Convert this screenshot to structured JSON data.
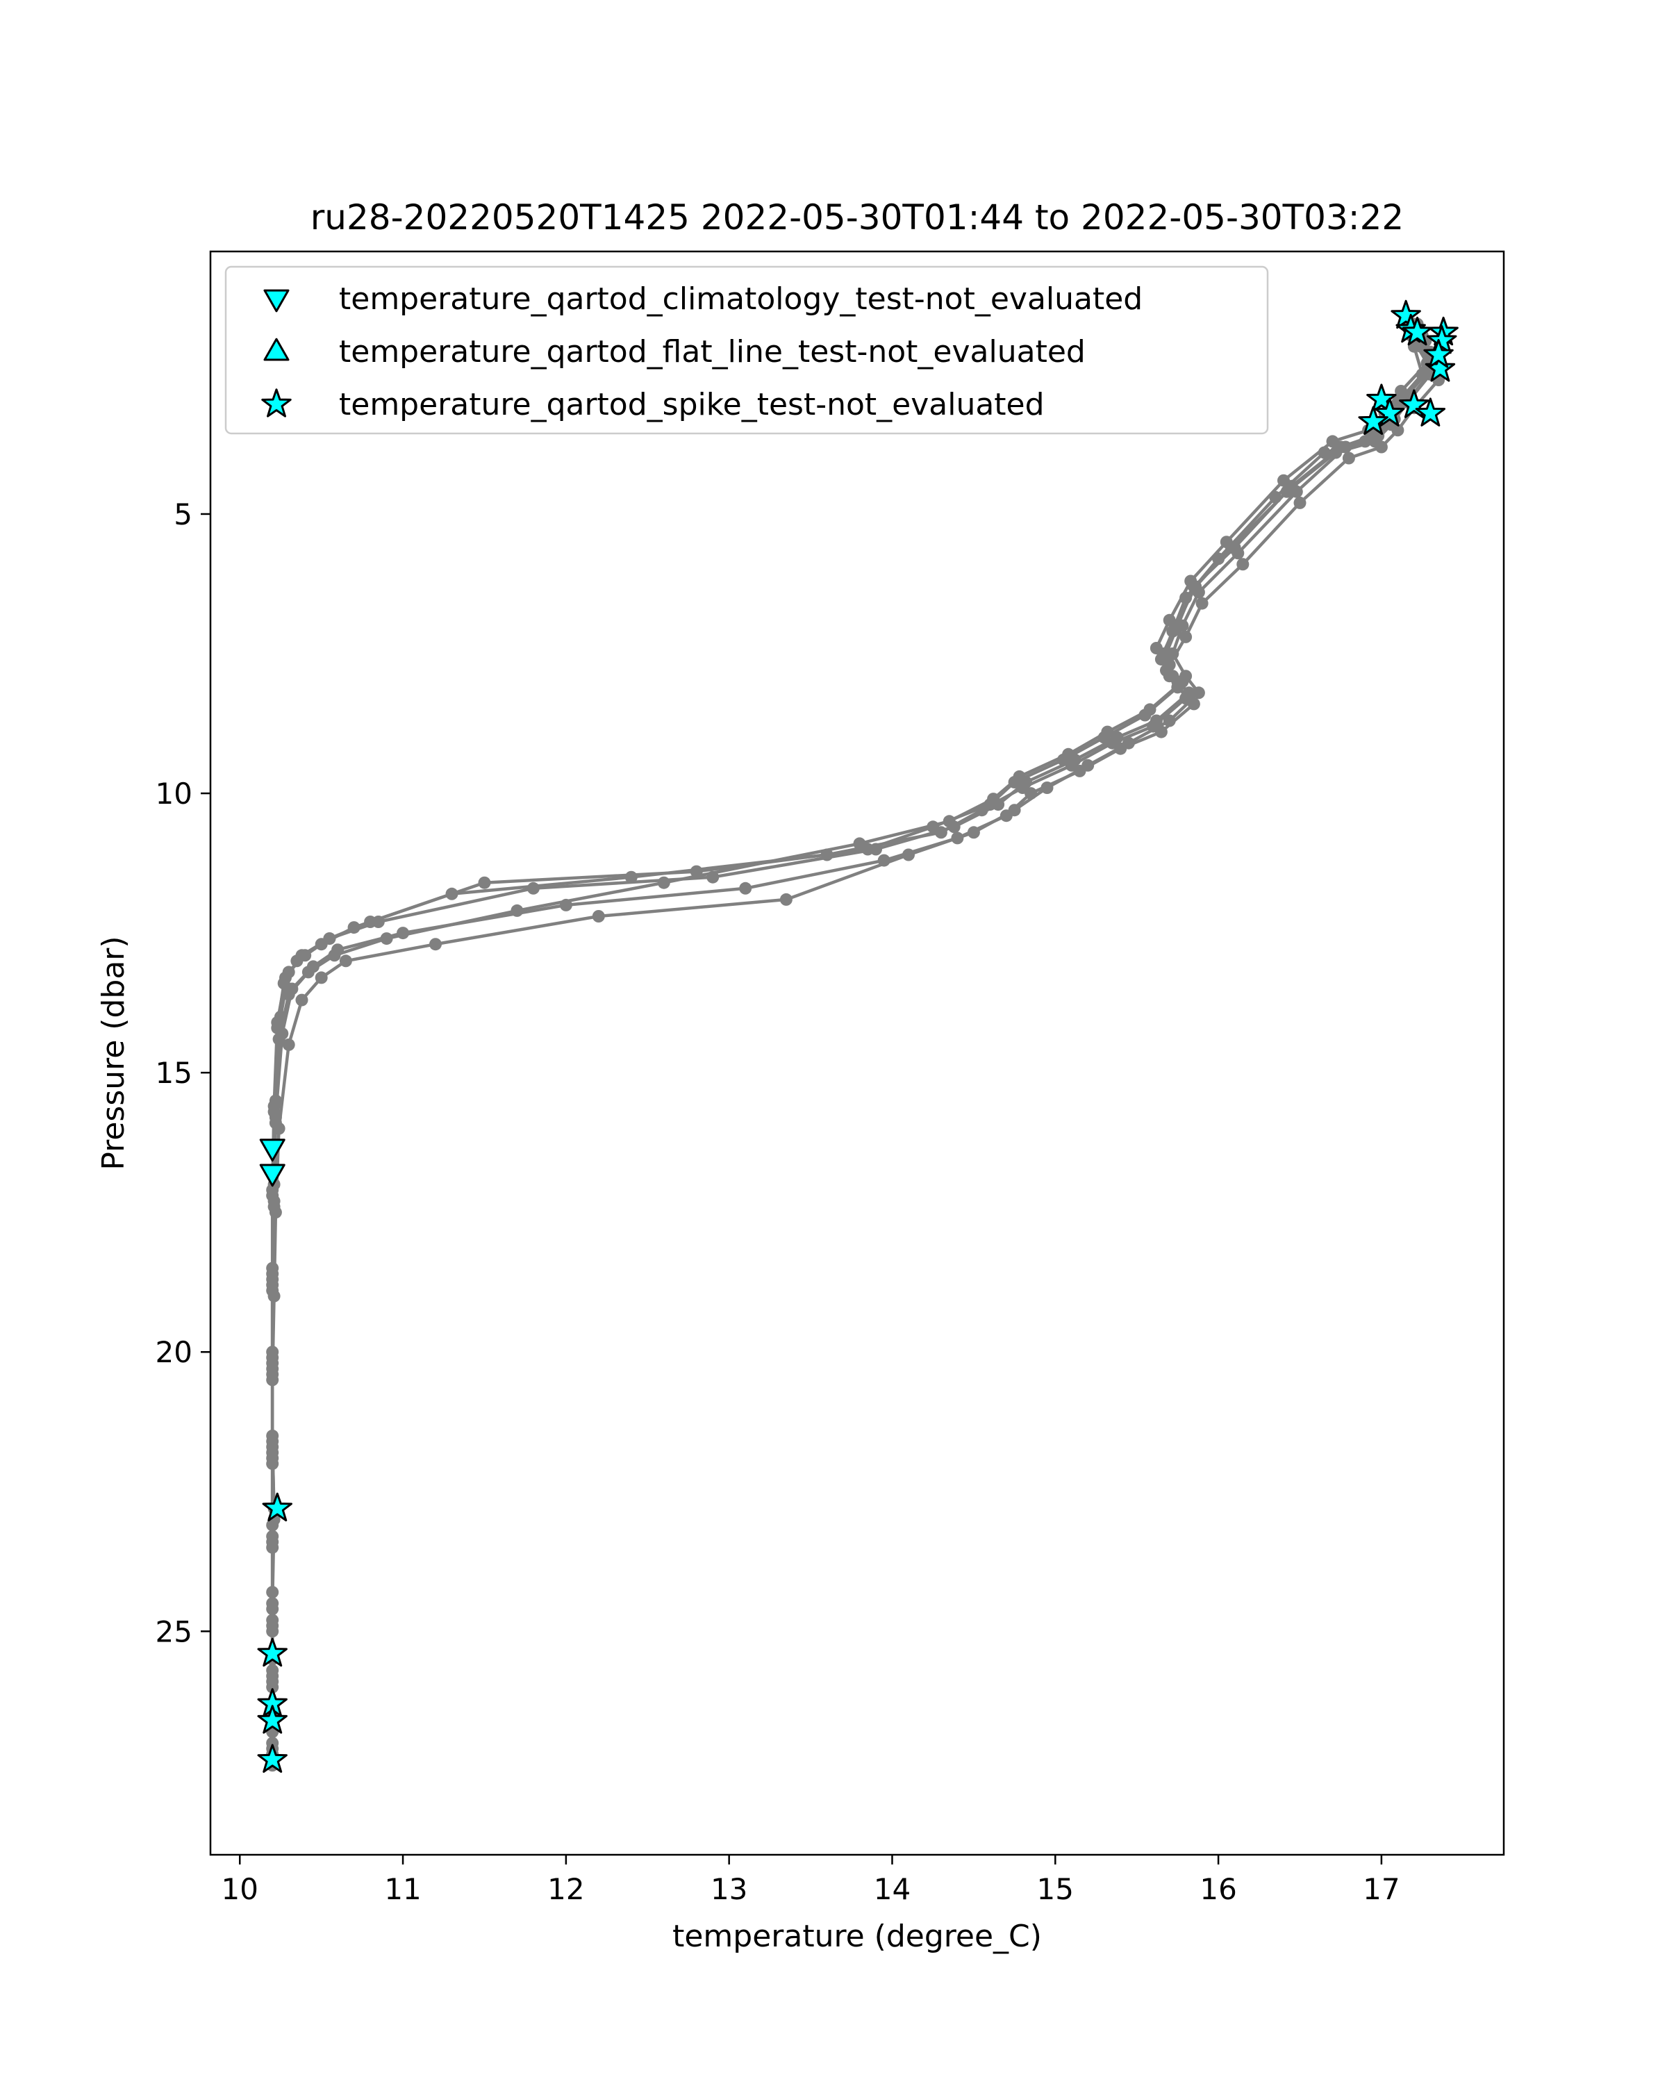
{
  "chart_data": {
    "type": "line",
    "title": "ru28-20220520T1425 2022-05-30T01:44 to 2022-05-30T03:22",
    "xlabel": "temperature (degree_C)",
    "ylabel": "Pressure (dbar)",
    "xlim": [
      9.82,
      17.75
    ],
    "ylim": [
      29.0,
      0.3
    ],
    "y_inverted": true,
    "x_ticks": [
      "10",
      "11",
      "12",
      "13",
      "14",
      "15",
      "16",
      "17"
    ],
    "y_ticks": [
      "5",
      "10",
      "15",
      "20",
      "25"
    ],
    "x_tick_values": [
      10,
      11,
      12,
      13,
      14,
      15,
      16,
      17
    ],
    "y_tick_values": [
      5,
      10,
      15,
      20,
      25
    ],
    "grid": false,
    "legend_position": "top-left",
    "line_color": "#808080",
    "marker_color": "#00ffff",
    "series": [
      {
        "name": "",
        "x": [
          17.2,
          17.23,
          17.3,
          17.15,
          17.05,
          16.95,
          16.75,
          16.45,
          16.1,
          15.85,
          15.75,
          15.68,
          15.7,
          15.75,
          15.55,
          15.3,
          15.05,
          14.75,
          14.6,
          14.25,
          13.85,
          12.8,
          11.5,
          10.8,
          10.55,
          10.4,
          10.3,
          10.25,
          10.22,
          10.21,
          10.2,
          10.2,
          10.2,
          10.21,
          10.2,
          10.2,
          10.2,
          10.2
        ],
        "y": [
          1.6,
          1.9,
          2.4,
          2.9,
          3.3,
          3.6,
          3.8,
          4.5,
          5.6,
          6.3,
          7.0,
          7.5,
          7.9,
          8.1,
          8.6,
          9.0,
          9.4,
          9.8,
          10.2,
          10.6,
          11.0,
          11.4,
          11.6,
          12.3,
          12.6,
          12.9,
          13.2,
          14.0,
          15.5,
          17.0,
          18.5,
          20.0,
          21.5,
          23.0,
          24.5,
          25.8,
          26.6,
          27.3
        ]
      },
      {
        "name": "",
        "x": [
          17.17,
          17.2,
          17.25,
          17.1,
          17.0,
          16.9,
          16.65,
          16.35,
          16.0,
          15.8,
          15.72,
          15.65,
          15.75,
          15.8,
          15.6,
          15.35,
          15.1,
          14.8,
          14.55,
          14.3,
          13.6,
          12.4,
          11.3,
          10.7,
          10.5,
          10.35,
          10.27,
          10.23,
          10.21,
          10.2,
          10.2,
          10.2,
          10.2,
          10.21,
          10.2,
          10.2,
          10.2,
          10.2
        ],
        "y": [
          1.7,
          2.0,
          2.5,
          3.0,
          3.4,
          3.7,
          3.9,
          4.7,
          5.8,
          6.5,
          7.1,
          7.6,
          8.0,
          8.3,
          8.8,
          9.1,
          9.5,
          9.9,
          10.3,
          10.7,
          11.1,
          11.5,
          11.8,
          12.4,
          12.7,
          13.0,
          13.4,
          14.2,
          15.7,
          17.2,
          18.7,
          20.2,
          21.7,
          22.8,
          24.3,
          25.5,
          26.3,
          27.0
        ]
      },
      {
        "name": "",
        "x": [
          17.25,
          17.3,
          17.35,
          17.2,
          17.1,
          17.0,
          16.8,
          16.5,
          16.15,
          15.9,
          15.8,
          15.7,
          15.75,
          15.85,
          15.65,
          15.4,
          15.15,
          14.85,
          14.7,
          14.4,
          13.95,
          13.1,
          12.0,
          11.0,
          10.6,
          10.45,
          10.32,
          10.26,
          10.22,
          10.21,
          10.2,
          10.2,
          10.2,
          10.2,
          10.2,
          10.2,
          10.2,
          10.2
        ],
        "y": [
          1.8,
          2.1,
          2.6,
          3.1,
          3.5,
          3.8,
          4.0,
          4.8,
          5.9,
          6.6,
          7.2,
          7.7,
          8.1,
          8.4,
          8.9,
          9.2,
          9.6,
          10.0,
          10.4,
          10.8,
          11.2,
          11.7,
          12.0,
          12.5,
          12.8,
          13.1,
          13.5,
          14.3,
          15.8,
          17.3,
          18.8,
          20.3,
          21.8,
          23.3,
          24.8,
          25.4,
          26.5,
          27.2
        ]
      },
      {
        "name": "",
        "x": [
          17.15,
          17.18,
          17.28,
          17.12,
          17.02,
          16.92,
          16.7,
          16.4,
          16.05,
          15.83,
          15.7,
          15.62,
          15.68,
          15.78,
          15.58,
          15.32,
          15.08,
          14.78,
          14.62,
          14.35,
          13.8,
          12.6,
          11.7,
          10.9,
          10.58,
          10.42,
          10.3,
          10.24,
          10.22,
          10.21,
          10.2,
          10.2,
          10.2,
          10.2,
          10.2,
          10.2,
          10.2,
          10.2
        ],
        "y": [
          1.5,
          1.8,
          2.3,
          2.8,
          3.2,
          3.5,
          3.7,
          4.4,
          5.5,
          6.2,
          6.9,
          7.4,
          7.8,
          8.0,
          8.5,
          8.9,
          9.3,
          9.7,
          10.1,
          10.5,
          10.9,
          11.6,
          12.1,
          12.6,
          12.9,
          13.2,
          13.6,
          14.4,
          15.9,
          17.4,
          18.9,
          20.4,
          21.9,
          23.4,
          24.9,
          25.9,
          26.7,
          27.4
        ]
      },
      {
        "name": "",
        "x": [
          17.22,
          17.27,
          17.32,
          17.18,
          17.08,
          16.98,
          16.78,
          16.48,
          16.12,
          15.88,
          15.78,
          15.72,
          15.8,
          15.88,
          15.7,
          15.45,
          15.2,
          14.95,
          14.75,
          14.5,
          14.1,
          13.35,
          12.2,
          11.2,
          10.65,
          10.5,
          10.38,
          10.3,
          10.24,
          10.22,
          10.21,
          10.2,
          10.2,
          10.2,
          10.2,
          10.2,
          10.2,
          10.2
        ],
        "y": [
          1.6,
          1.9,
          2.4,
          2.9,
          3.3,
          3.6,
          3.8,
          4.6,
          5.7,
          6.4,
          7.0,
          7.5,
          7.9,
          8.2,
          8.7,
          9.1,
          9.5,
          9.9,
          10.3,
          10.7,
          11.1,
          11.9,
          12.2,
          12.7,
          13.0,
          13.3,
          13.7,
          14.5,
          16.0,
          17.5,
          19.0,
          20.5,
          22.0,
          23.5,
          25.0,
          26.0,
          26.8,
          27.3
        ]
      },
      {
        "name": "",
        "x": [
          17.19,
          17.24,
          17.3,
          17.16,
          17.06,
          16.96,
          16.72,
          16.42,
          16.08,
          15.86,
          15.74,
          15.66,
          15.72,
          15.82,
          15.62,
          15.38,
          15.12,
          14.82,
          14.65,
          14.38,
          13.9,
          12.9,
          11.8,
          10.85,
          10.55,
          10.38,
          10.28,
          10.23,
          10.21,
          10.2,
          10.2,
          10.2,
          10.2,
          10.2,
          10.2,
          10.2,
          10.2,
          10.2
        ],
        "y": [
          1.7,
          2.0,
          2.5,
          3.0,
          3.4,
          3.7,
          3.9,
          4.6,
          5.6,
          6.3,
          7.0,
          7.5,
          7.9,
          8.2,
          8.7,
          9.0,
          9.4,
          9.8,
          10.2,
          10.6,
          11.0,
          11.5,
          11.7,
          12.3,
          12.6,
          12.9,
          13.3,
          14.1,
          15.6,
          17.1,
          18.6,
          20.1,
          21.6,
          23.1,
          24.6,
          25.7,
          26.4,
          27.1
        ]
      }
    ],
    "flag_series": [
      {
        "name": "temperature_qartod_climatology_test-not_evaluated",
        "marker": "triangle-down",
        "x": [
          10.2,
          10.2
        ],
        "y": [
          16.35,
          16.8
        ]
      },
      {
        "name": "temperature_qartod_flat_line_test-not_evaluated",
        "marker": "triangle-up",
        "x": [],
        "y": []
      },
      {
        "name": "temperature_qartod_spike_test-not_evaluated",
        "marker": "star",
        "x": [
          17.15,
          17.18,
          17.22,
          17.38,
          17.37,
          17.36,
          17.35,
          17.0,
          17.05,
          16.95,
          17.2,
          17.3,
          10.23,
          10.2,
          10.2,
          10.2,
          10.2
        ],
        "y": [
          1.45,
          1.7,
          1.75,
          1.75,
          1.9,
          2.4,
          2.15,
          2.95,
          3.2,
          3.35,
          3.05,
          3.2,
          22.8,
          25.4,
          26.3,
          26.6,
          27.3
        ]
      }
    ]
  }
}
